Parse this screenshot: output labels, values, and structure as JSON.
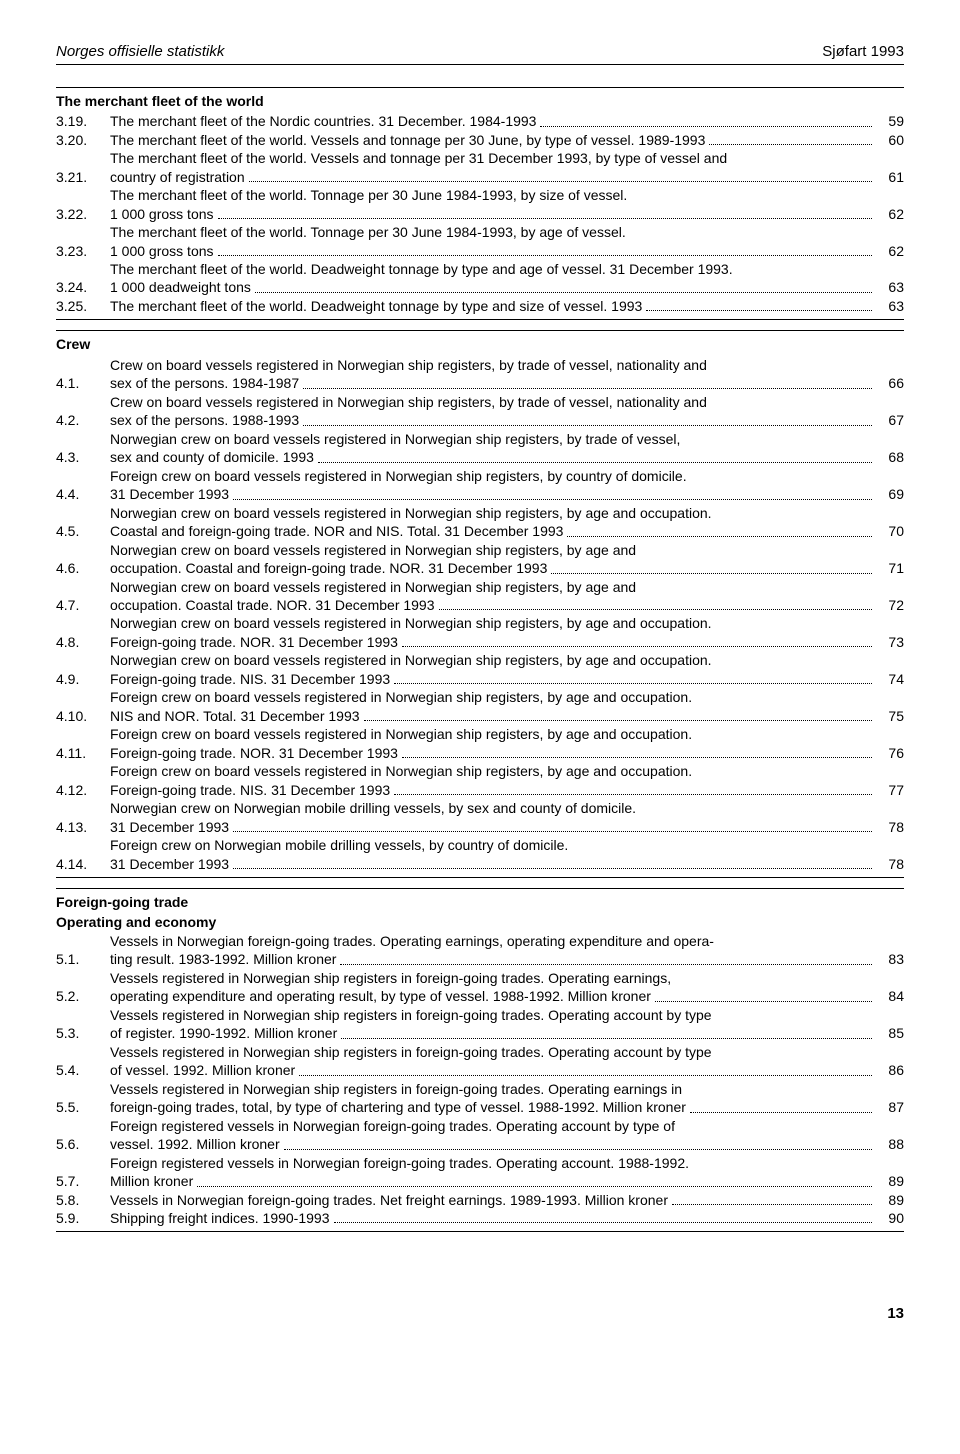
{
  "header": {
    "left": "Norges offisielle statistikk",
    "right": "Sjøfart 1993"
  },
  "sections": [
    {
      "title": "The merchant fleet of the world",
      "entries": [
        {
          "num": "3.19.",
          "lines": [
            "The merchant fleet of the Nordic countries. 31 December. 1984-1993"
          ],
          "page": "59"
        },
        {
          "num": "3.20.",
          "lines": [
            "The merchant fleet of the world. Vessels and tonnage per 30 June, by type of vessel. 1989-1993"
          ],
          "page": "60"
        },
        {
          "num": "3.21.",
          "lines": [
            "The merchant fleet of the world. Vessels and tonnage per 31 December 1993, by type of vessel and",
            "country of registration"
          ],
          "page": "61"
        },
        {
          "num": "3.22.",
          "lines": [
            "The merchant fleet of the world. Tonnage per 30 June 1984-1993, by size of vessel.",
            "1 000 gross tons"
          ],
          "page": "62"
        },
        {
          "num": "3.23.",
          "lines": [
            "The merchant fleet of the world. Tonnage per 30 June 1984-1993, by age of vessel.",
            "1 000 gross tons"
          ],
          "page": "62"
        },
        {
          "num": "3.24.",
          "lines": [
            "The merchant fleet of the world. Deadweight tonnage by type and age of vessel. 31 December 1993.",
            "1 000 deadweight tons"
          ],
          "page": "63"
        },
        {
          "num": "3.25.",
          "lines": [
            "The merchant fleet of the world. Deadweight tonnage by type and size of vessel. 1993"
          ],
          "page": "63"
        }
      ]
    },
    {
      "title": "Crew",
      "entries": [
        {
          "num": "4.1.",
          "lines": [
            "Crew on board vessels registered in Norwegian ship registers, by trade of vessel, nationality and",
            "sex of the persons. 1984-1987"
          ],
          "page": "66"
        },
        {
          "num": "4.2.",
          "lines": [
            "Crew on board vessels registered in Norwegian ship registers, by trade of vessel, nationality and",
            "sex of the persons. 1988-1993"
          ],
          "page": "67"
        },
        {
          "num": "4.3.",
          "lines": [
            "Norwegian crew on board vessels registered in Norwegian ship registers, by trade of vessel,",
            "sex and county of domicile. 1993"
          ],
          "page": "68"
        },
        {
          "num": "4.4.",
          "lines": [
            "Foreign crew on board vessels registered in Norwegian ship registers, by country of domicile.",
            "31 December 1993"
          ],
          "page": "69"
        },
        {
          "num": "4.5.",
          "lines": [
            "Norwegian crew on board vessels registered in Norwegian ship registers, by age and occupation.",
            "Coastal and foreign-going trade. NOR and NIS. Total. 31 December 1993"
          ],
          "page": "70"
        },
        {
          "num": "4.6.",
          "lines": [
            "Norwegian crew on board vessels registered in Norwegian ship registers, by age and",
            "occupation. Coastal and foreign-going trade. NOR. 31 December 1993"
          ],
          "page": "71"
        },
        {
          "num": "4.7.",
          "lines": [
            "Norwegian crew on board vessels registered in Norwegian ship registers, by age and",
            "occupation. Coastal trade. NOR. 31 December 1993"
          ],
          "page": "72"
        },
        {
          "num": "4.8.",
          "lines": [
            "Norwegian crew on board vessels registered in Norwegian ship registers, by age and occupation.",
            "Foreign-going trade. NOR. 31 December 1993"
          ],
          "page": "73"
        },
        {
          "num": "4.9.",
          "lines": [
            "Norwegian crew on board vessels registered in Norwegian ship registers, by age and occupation.",
            "Foreign-going trade. NIS. 31 December 1993"
          ],
          "page": "74"
        },
        {
          "num": "4.10.",
          "lines": [
            "Foreign crew on board vessels registered in Norwegian ship registers, by age and occupation.",
            "NIS and NOR. Total. 31 December 1993"
          ],
          "page": "75"
        },
        {
          "num": "4.11.",
          "lines": [
            "Foreign crew on board vessels registered in Norwegian ship registers, by age and occupation.",
            "Foreign-going trade. NOR. 31 December 1993"
          ],
          "page": "76"
        },
        {
          "num": "4.12.",
          "lines": [
            "Foreign crew on board vessels registered in Norwegian ship registers, by age and occupation.",
            "Foreign-going trade. NIS. 31 December 1993"
          ],
          "page": "77"
        },
        {
          "num": "4.13.",
          "lines": [
            "Norwegian crew on Norwegian mobile drilling vessels, by sex and county of domicile.",
            "31 December 1993"
          ],
          "page": "78"
        },
        {
          "num": "4.14.",
          "lines": [
            "Foreign crew on Norwegian mobile drilling vessels, by country of domicile.",
            "31 December 1993"
          ],
          "page": "78"
        }
      ]
    },
    {
      "title": "Foreign-going trade",
      "subtitle": "Operating and economy",
      "entries": [
        {
          "num": "5.1.",
          "lines": [
            "Vessels in Norwegian foreign-going trades. Operating earnings, operating expenditure and opera-",
            "ting result. 1983-1992. Million kroner"
          ],
          "page": "83"
        },
        {
          "num": "5.2.",
          "lines": [
            "Vessels registered in Norwegian ship registers in foreign-going trades. Operating earnings,",
            "operating expenditure and operating result, by type of vessel. 1988-1992. Million kroner"
          ],
          "page": "84"
        },
        {
          "num": "5.3.",
          "lines": [
            "Vessels registered in Norwegian ship registers in foreign-going trades. Operating account by type",
            "of register. 1990-1992. Million kroner"
          ],
          "page": "85"
        },
        {
          "num": "5.4.",
          "lines": [
            "Vessels registered in Norwegian ship registers in foreign-going trades. Operating account by type",
            "of vessel. 1992. Million kroner"
          ],
          "page": "86"
        },
        {
          "num": "5.5.",
          "lines": [
            "Vessels registered in Norwegian ship registers in foreign-going trades. Operating earnings in",
            "foreign-going trades, total, by type of chartering and type of vessel. 1988-1992. Million kroner"
          ],
          "page": "87"
        },
        {
          "num": "5.6.",
          "lines": [
            "Foreign registered vessels in Norwegian foreign-going trades. Operating account by type of",
            "vessel. 1992. Million kroner"
          ],
          "page": "88"
        },
        {
          "num": "5.7.",
          "lines": [
            "Foreign registered vessels in Norwegian foreign-going trades. Operating account. 1988-1992.",
            "Million kroner"
          ],
          "page": "89"
        },
        {
          "num": "5.8.",
          "lines": [
            "Vessels in Norwegian foreign-going trades. Net freight earnings. 1989-1993. Million kroner"
          ],
          "page": "89"
        },
        {
          "num": "5.9.",
          "lines": [
            "Shipping freight indices. 1990-1993"
          ],
          "page": "90"
        }
      ]
    }
  ],
  "page_number": "13"
}
